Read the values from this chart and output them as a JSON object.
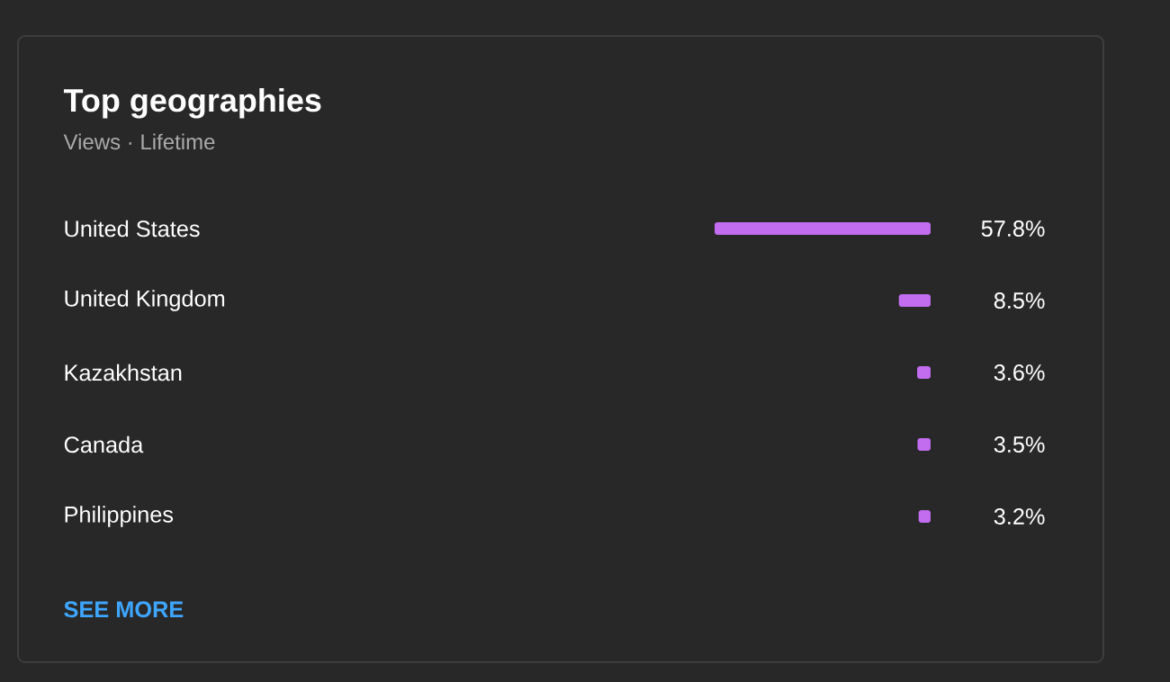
{
  "chart_data": {
    "type": "bar",
    "orientation": "horizontal",
    "title": "Top geographies",
    "subtitle": "Views · Lifetime",
    "categories": [
      "United States",
      "United Kingdom",
      "Kazakhstan",
      "Canada",
      "Philippines"
    ],
    "values": [
      57.8,
      8.5,
      3.6,
      3.5,
      3.2
    ],
    "value_labels": [
      "57.8%",
      "8.5%",
      "3.6%",
      "3.5%",
      "3.2%"
    ],
    "color": "#c26cf0",
    "annotations": [
      "SEE MORE"
    ]
  }
}
